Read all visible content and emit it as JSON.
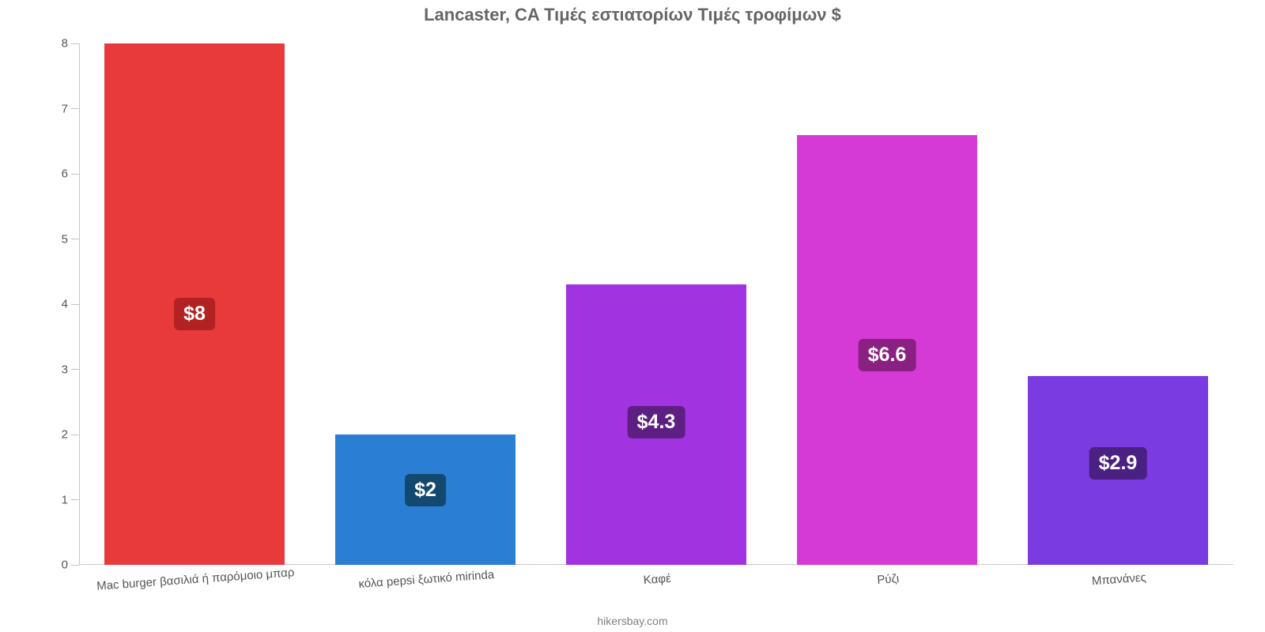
{
  "chart": {
    "type": "bar",
    "title": "Lancaster, CA Τιμές εστιατορίων Τιμές τροφίμων $",
    "title_fontsize": 22,
    "title_color": "#666666",
    "background_color": "#ffffff",
    "axis_color": "#888888",
    "tick_label_color": "#555555",
    "tick_label_fontsize": 15,
    "ylim": [
      0,
      8
    ],
    "ytick_step": 1,
    "yticks": [
      0,
      1,
      2,
      3,
      4,
      5,
      6,
      7,
      8
    ],
    "bar_width_ratio": 0.78,
    "value_label_fontsize": 25,
    "value_label_text_color": "#ffffff",
    "categories": [
      "Mac burger βασιλιά ή παρόμοιο μπαρ",
      "κόλα pepsi ξωτικό mirinda",
      "Καφέ",
      "Ρύζι",
      "Μπανάνες"
    ],
    "values": [
      8,
      2,
      4.3,
      6.6,
      2.9
    ],
    "value_labels": [
      "$8",
      "$2",
      "$4.3",
      "$6.6",
      "$2.9"
    ],
    "bar_colors": [
      "#e8393b",
      "#2a7fd4",
      "#a233e0",
      "#d63ad6",
      "#7a3be0"
    ],
    "value_badge_colors": [
      "#b22222",
      "#14496f",
      "#5d2082",
      "#8a2082",
      "#4a2082"
    ],
    "attribution": "hikersbay.com",
    "attribution_color": "#808080",
    "attribution_fontsize": 14,
    "category_label_rotate_deg": -4
  }
}
